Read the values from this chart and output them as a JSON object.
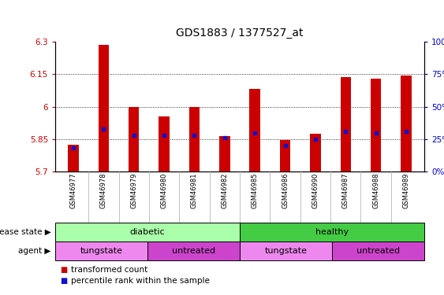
{
  "title": "GDS1883 / 1377527_at",
  "samples": [
    "GSM46977",
    "GSM46978",
    "GSM46979",
    "GSM46980",
    "GSM46981",
    "GSM46982",
    "GSM46985",
    "GSM46986",
    "GSM46990",
    "GSM46987",
    "GSM46988",
    "GSM46989"
  ],
  "transformed_count": [
    5.825,
    6.285,
    6.0,
    5.955,
    6.0,
    5.865,
    6.08,
    5.845,
    5.875,
    6.135,
    6.13,
    6.145
  ],
  "percentile_rank": [
    18,
    33,
    28,
    28,
    28,
    26,
    30,
    20,
    25,
    31,
    30,
    31
  ],
  "ymin": 5.7,
  "ymax": 6.3,
  "yticks": [
    5.7,
    5.85,
    6.0,
    6.15,
    6.3
  ],
  "ytick_labels": [
    "5.7",
    "5.85",
    "6",
    "6.15",
    "6.3"
  ],
  "right_yticks_pct": [
    0,
    25,
    50,
    75,
    100
  ],
  "bar_color": "#cc0000",
  "dot_color": "#1111cc",
  "grid_color": "#000000",
  "diabetic_color": "#aaffaa",
  "healthy_color": "#44cc44",
  "tungstate_color": "#ee88ee",
  "untreated_color": "#cc44cc",
  "legend_red_label": "transformed count",
  "legend_blue_label": "percentile rank within the sample",
  "disease_state_label": "disease state",
  "agent_label": "agent",
  "diabetic_label": "diabetic",
  "healthy_label": "healthy",
  "tungstate_label": "tungstate",
  "untreated_label": "untreated",
  "bar_width": 0.35
}
